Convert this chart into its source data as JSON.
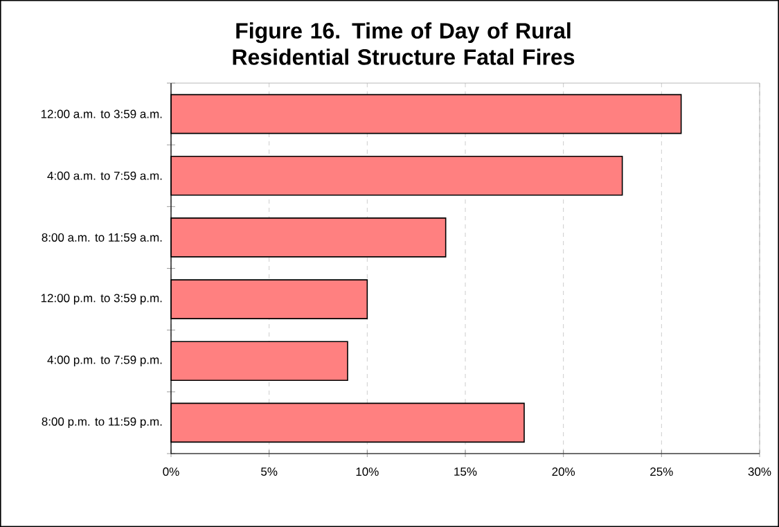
{
  "chart_data": {
    "type": "bar",
    "orientation": "horizontal",
    "title": "Figure 16. Time of Day of Rural Residential Structure Fatal Fires",
    "categories": [
      "12:00 a.m. to 3:59 a.m.",
      "4:00 a.m. to 7:59 a.m.",
      "8:00 a.m. to 11:59 a.m.",
      "12:00 p.m. to 3:59 p.m.",
      "4:00 p.m. to 7:59 p.m.",
      "8:00 p.m. to 11:59 p.m."
    ],
    "values": [
      26,
      23,
      14,
      10,
      9,
      18
    ],
    "color": "#ff8080",
    "xlim": [
      0,
      30
    ],
    "xticks": [
      {
        "value": 0,
        "label": "0%"
      },
      {
        "value": 5,
        "label": "5%"
      },
      {
        "value": 10,
        "label": "10%"
      },
      {
        "value": 15,
        "label": "15%"
      },
      {
        "value": 20,
        "label": "20%"
      },
      {
        "value": 25,
        "label": "25%"
      },
      {
        "value": 30,
        "label": "30%"
      }
    ],
    "grid": "x"
  }
}
